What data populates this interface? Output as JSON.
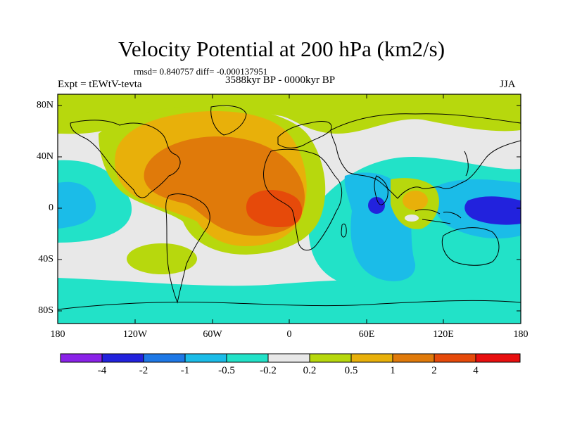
{
  "title": "Velocity Potential at 200 hPa (km2/s)",
  "stats": "rmsd= 0.840757  diff= -0.000137951",
  "experiment": "Expt = tEWtV-tevta",
  "period": "3588kyr BP - 0000kyr BP",
  "season": "JJA",
  "y_axis_labels": [
    "80N",
    "40N",
    "0",
    "40S",
    "80S"
  ],
  "x_axis_labels": [
    "180",
    "120W",
    "60W",
    "0",
    "60E",
    "120E",
    "180"
  ],
  "colorbar": {
    "colors": [
      "#8a22e8",
      "#2222dd",
      "#1e78e6",
      "#1bbce8",
      "#22e2c8",
      "#e8e8e8",
      "#b7d80d",
      "#e8b00a",
      "#e07a0a",
      "#e64a0a",
      "#e80f0f"
    ],
    "labels": [
      "-4",
      "-2",
      "-1",
      "-0.5",
      "-0.2",
      "0.2",
      "0.5",
      "1",
      "2",
      "4"
    ]
  }
}
